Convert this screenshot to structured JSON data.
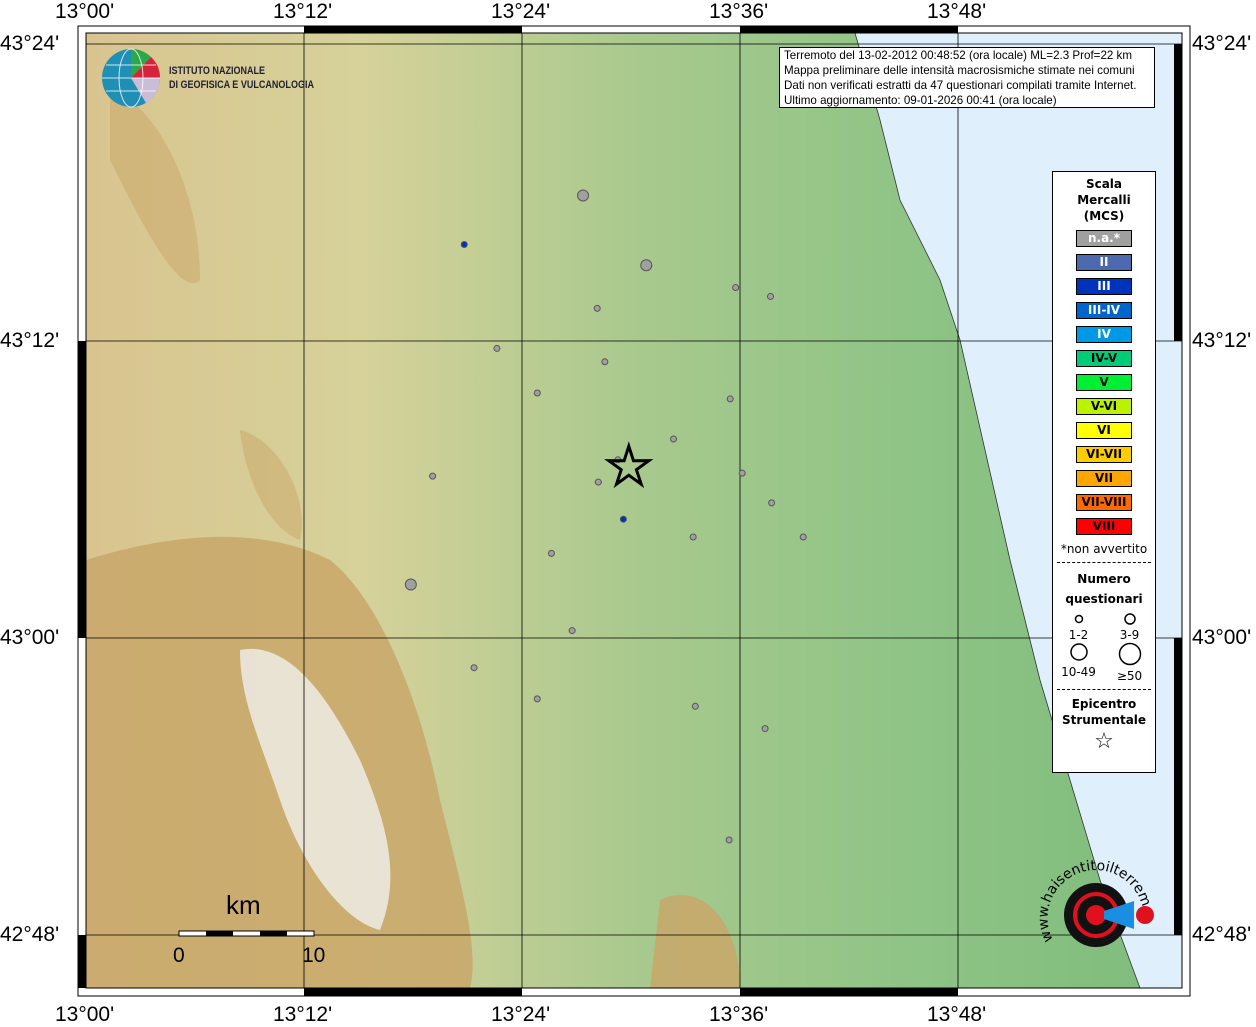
{
  "info": {
    "lines": [
      "Terremoto del 13-02-2012 00:48:52 (ora locale) ML=2.3 Prof=22 km",
      "Mappa preliminare delle intensità macrosismiche stimate nei comuni",
      "Dati non verificati estratti da 47 questionari compilati tramite Internet.",
      "Ultimo aggiornamento: 09-01-2026 00:41 (ora locale)"
    ]
  },
  "logo": {
    "line1": "ISTITUTO NAZIONALE",
    "line2": "DI GEOFISICA E VULCANOLOGIA"
  },
  "hsLogo": {
    "text": "www.haisentitoilterremoto.it"
  },
  "axes": {
    "lon_labels": [
      "13°00'",
      "13°12'",
      "13°24'",
      "13°36'",
      "13°48'"
    ],
    "lat_labels": [
      "43°24'",
      "43°12'",
      "43°00'",
      "42°48'"
    ]
  },
  "scalebar": {
    "unit": "km",
    "start": "0",
    "end": "10"
  },
  "legend": {
    "title": [
      "Scala",
      "Mercalli",
      "(MCS)"
    ],
    "classes": [
      {
        "label": "n.a.*",
        "color": "#a0a0a0",
        "text": "#ffffff"
      },
      {
        "label": "II",
        "color": "#4d6aae",
        "text": "#ffffff"
      },
      {
        "label": "III",
        "color": "#0033bb",
        "text": "#ffffff"
      },
      {
        "label": "III-IV",
        "color": "#0066cc",
        "text": "#ffffff"
      },
      {
        "label": "IV",
        "color": "#0099e6",
        "text": "#ffffff"
      },
      {
        "label": "IV-V",
        "color": "#00cc77",
        "text": "#000000"
      },
      {
        "label": "V",
        "color": "#00ee33",
        "text": "#000000"
      },
      {
        "label": "V-VI",
        "color": "#bbf200",
        "text": "#000000"
      },
      {
        "label": "VI",
        "color": "#ffff00",
        "text": "#000000"
      },
      {
        "label": "VI-VII",
        "color": "#ffcc00",
        "text": "#000000"
      },
      {
        "label": "VII",
        "color": "#ffa500",
        "text": "#000000"
      },
      {
        "label": "VII-VIII",
        "color": "#ff6a00",
        "text": "#000000"
      },
      {
        "label": "VIII",
        "color": "#ff0000",
        "text": "#000000"
      }
    ],
    "note": "*non avvertito",
    "count_title": [
      "Numero",
      "questionari"
    ],
    "count_classes": [
      "1-2",
      "3-9",
      "10-49",
      "≥50"
    ],
    "epi_title": [
      "Epicentro",
      "Strumentale"
    ]
  },
  "epicenter": {
    "lon": 13.498,
    "lat": 43.115
  },
  "points": [
    {
      "lon": 13.456,
      "lat": 43.298,
      "mcs": "n.a.*",
      "n": "3-9"
    },
    {
      "lon": 13.347,
      "lat": 43.265,
      "mcs": "III",
      "n": "1-2"
    },
    {
      "lon": 13.514,
      "lat": 43.251,
      "mcs": "n.a.*",
      "n": "3-9"
    },
    {
      "lon": 13.596,
      "lat": 43.236,
      "mcs": "n.a.*",
      "n": "1-2"
    },
    {
      "lon": 13.628,
      "lat": 43.23,
      "mcs": "n.a.*",
      "n": "1-2"
    },
    {
      "lon": 13.469,
      "lat": 43.222,
      "mcs": "n.a.*",
      "n": "1-2"
    },
    {
      "lon": 13.377,
      "lat": 43.195,
      "mcs": "n.a.*",
      "n": "1-2"
    },
    {
      "lon": 13.476,
      "lat": 43.186,
      "mcs": "n.a.*",
      "n": "1-2"
    },
    {
      "lon": 13.414,
      "lat": 43.165,
      "mcs": "n.a.*",
      "n": "1-2"
    },
    {
      "lon": 13.591,
      "lat": 43.161,
      "mcs": "n.a.*",
      "n": "1-2"
    },
    {
      "lon": 13.539,
      "lat": 43.134,
      "mcs": "n.a.*",
      "n": "1-2"
    },
    {
      "lon": 13.488,
      "lat": 43.12,
      "mcs": "n.a.*",
      "n": "1-2"
    },
    {
      "lon": 13.47,
      "lat": 43.105,
      "mcs": "n.a.*",
      "n": "1-2"
    },
    {
      "lon": 13.602,
      "lat": 43.111,
      "mcs": "n.a.*",
      "n": "1-2"
    },
    {
      "lon": 13.318,
      "lat": 43.109,
      "mcs": "n.a.*",
      "n": "1-2"
    },
    {
      "lon": 13.629,
      "lat": 43.091,
      "mcs": "n.a.*",
      "n": "1-2"
    },
    {
      "lon": 13.493,
      "lat": 43.08,
      "mcs": "III",
      "n": "1-2"
    },
    {
      "lon": 13.557,
      "lat": 43.068,
      "mcs": "n.a.*",
      "n": "1-2"
    },
    {
      "lon": 13.658,
      "lat": 43.068,
      "mcs": "n.a.*",
      "n": "1-2"
    },
    {
      "lon": 13.427,
      "lat": 43.057,
      "mcs": "n.a.*",
      "n": "1-2"
    },
    {
      "lon": 13.298,
      "lat": 43.036,
      "mcs": "n.a.*",
      "n": "3-9"
    },
    {
      "lon": 13.446,
      "lat": 43.005,
      "mcs": "n.a.*",
      "n": "1-2"
    },
    {
      "lon": 13.356,
      "lat": 42.98,
      "mcs": "n.a.*",
      "n": "1-2"
    },
    {
      "lon": 13.414,
      "lat": 42.959,
      "mcs": "n.a.*",
      "n": "1-2"
    },
    {
      "lon": 13.559,
      "lat": 42.954,
      "mcs": "n.a.*",
      "n": "1-2"
    },
    {
      "lon": 13.623,
      "lat": 42.939,
      "mcs": "n.a.*",
      "n": "1-2"
    },
    {
      "lon": 13.59,
      "lat": 42.864,
      "mcs": "n.a.*",
      "n": "1-2"
    }
  ]
}
